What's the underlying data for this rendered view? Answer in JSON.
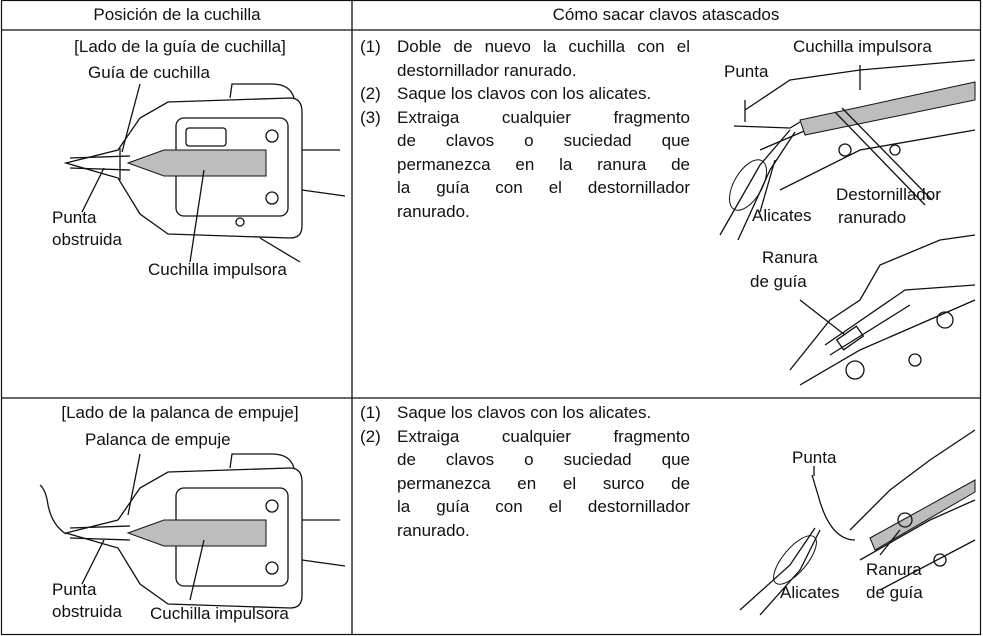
{
  "table": {
    "headers": [
      "Posición de la cuchilla",
      "Cómo sacar clavos atascados"
    ],
    "rows": [
      {
        "position": {
          "heading": "[Lado de la guía de cuchilla]",
          "labels": {
            "guide": "Guía de cuchilla",
            "tip": [
              "Punta",
              "obstruida"
            ],
            "blade": "Cuchilla impulsora"
          }
        },
        "removal": {
          "steps": [
            {
              "number": "(1)",
              "lines": [
                "Doble de nuevo la cuchilla con el",
                "destornillador ranurado."
              ]
            },
            {
              "number": "(2)",
              "lines": [
                "Saque los clavos con los alicates."
              ]
            },
            {
              "number": "(3)",
              "lines": [
                "Extraiga cualquier fragmento",
                "de clavos o suciedad que",
                "permanezca en la ranura de",
                "la guía con el destornillador",
                "ranurado."
              ]
            }
          ],
          "labels": {
            "blade": "Cuchilla impulsora",
            "tip": "Punta",
            "screwdriver": [
              "Destornillador",
              "ranurado"
            ],
            "pliers": "Alicates",
            "groove": [
              "Ranura",
              "de guía"
            ]
          }
        }
      },
      {
        "position": {
          "heading": "[Lado de la palanca de empuje]",
          "labels": {
            "guide": "Palanca de empuje",
            "tip": [
              "Punta",
              "obstruida"
            ],
            "blade": "Cuchilla impulsora"
          }
        },
        "removal": {
          "steps": [
            {
              "number": "(1)",
              "lines": [
                "Saque los clavos con los alicates."
              ]
            },
            {
              "number": "(2)",
              "lines": [
                "Extraiga cualquier fragmento",
                "de clavos o suciedad que",
                "permanezca en el surco de",
                "la guía con el destornillador",
                "ranurado."
              ]
            }
          ],
          "labels": {
            "tip": "Punta",
            "pliers": "Alicates",
            "groove": [
              "Ranura",
              "de guía"
            ]
          }
        }
      }
    ]
  }
}
